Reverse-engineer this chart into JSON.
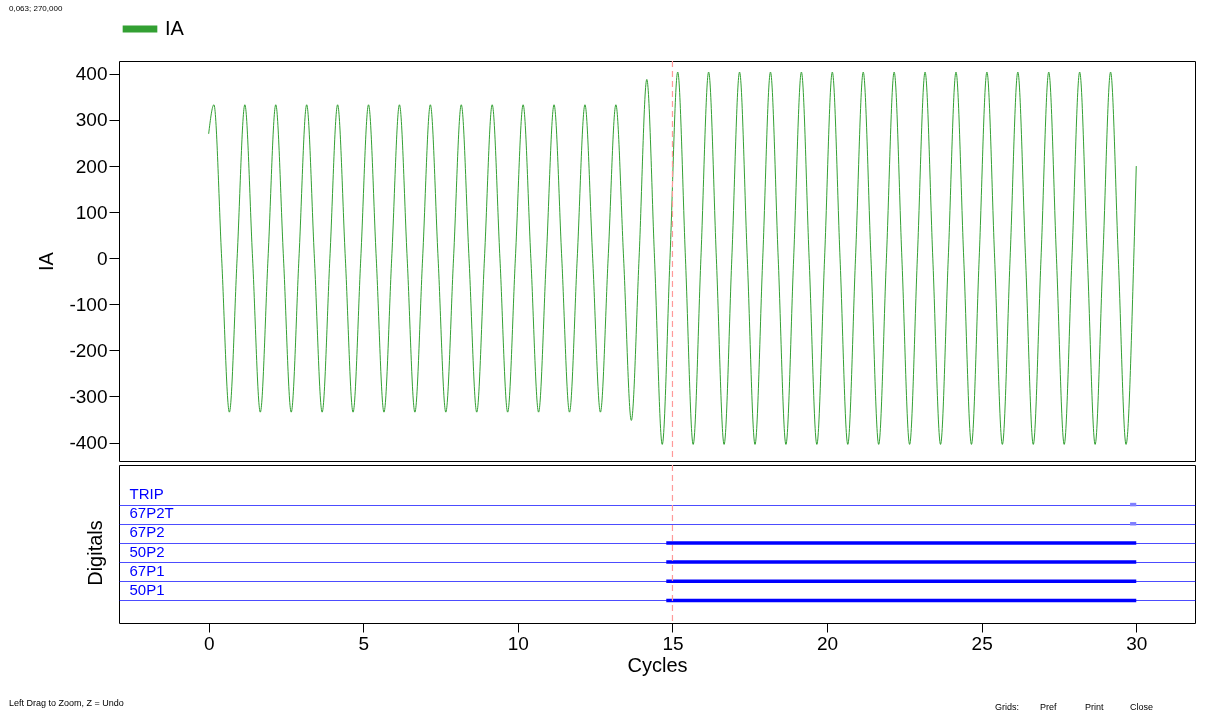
{
  "chart_data": [
    {
      "type": "line",
      "ylabel": "IA",
      "xlim": [
        -2.9,
        31.9
      ],
      "ylim": [
        -440,
        428
      ],
      "yticks": [
        -400,
        -300,
        -200,
        -100,
        0,
        100,
        200,
        300,
        400
      ],
      "tick_labels": "y",
      "grid": false,
      "legend": "top",
      "annotations": [
        "0,063; 270,000"
      ],
      "ref_lines": [
        {
          "axis": "x",
          "value": 15,
          "color": "#ff9999",
          "line_style": "dashed"
        }
      ],
      "series": [
        {
          "name": "IA",
          "color": "#33a033",
          "x": [
            0,
            0.17,
            0.42,
            0.67,
            0.92,
            1.17,
            1.42,
            1.67,
            1.92,
            2.17,
            2.42,
            2.67,
            2.92,
            3.17,
            3.42,
            3.67,
            3.92,
            4.17,
            4.42,
            4.67,
            4.92,
            5.17,
            5.42,
            5.67,
            5.92,
            6.17,
            6.42,
            6.67,
            6.92,
            7.17,
            7.42,
            7.67,
            7.92,
            8.17,
            8.42,
            8.67,
            8.92,
            9.17,
            9.42,
            9.67,
            9.92,
            10.17,
            10.42,
            10.67,
            10.92,
            11.17,
            11.42,
            11.67,
            11.92,
            12.17,
            12.42,
            12.67,
            12.92,
            13.17,
            13.42,
            13.67,
            13.92,
            14.17,
            14.42,
            14.67,
            14.92,
            15.17,
            15.42,
            15.67,
            15.92,
            16.17,
            16.42,
            16.67,
            16.92,
            17.17,
            17.42,
            17.67,
            17.92,
            18.17,
            18.42,
            18.67,
            18.92,
            19.17,
            19.42,
            19.67,
            19.92,
            20.17,
            20.42,
            20.67,
            20.92,
            21.17,
            21.42,
            21.67,
            21.92,
            22.17,
            22.42,
            22.67,
            22.92,
            23.17,
            23.42,
            23.67,
            23.92,
            24.17,
            24.42,
            24.67,
            24.92,
            25.17,
            25.42,
            25.67,
            25.92,
            26.17,
            26.42,
            26.67,
            26.92,
            27.17,
            27.42,
            27.67,
            27.92,
            28.17,
            28.42,
            28.67,
            28.92,
            29.17,
            29.42,
            29.67,
            29.92,
            30
          ],
          "values": [
            270,
            333,
            0,
            -334,
            0,
            333,
            0,
            -334,
            0,
            333,
            0,
            -334,
            0,
            333,
            0,
            -334,
            0,
            333,
            0,
            -334,
            0,
            333,
            0,
            -334,
            0,
            333,
            0,
            -334,
            0,
            333,
            0,
            -334,
            0,
            333,
            0,
            -334,
            0,
            333,
            0,
            -334,
            0,
            333,
            0,
            -334,
            0,
            333,
            0,
            -334,
            0,
            333,
            0,
            -334,
            0,
            333,
            0,
            -352,
            0,
            388,
            0,
            -404,
            0,
            404,
            0,
            -404,
            0,
            404,
            0,
            -404,
            0,
            404,
            0,
            -404,
            0,
            404,
            0,
            -404,
            0,
            404,
            0,
            -404,
            0,
            404,
            0,
            -404,
            0,
            404,
            0,
            -404,
            0,
            404,
            0,
            -404,
            0,
            404,
            0,
            -404,
            0,
            404,
            0,
            -404,
            0,
            404,
            0,
            -404,
            0,
            404,
            0,
            -404,
            0,
            404,
            0,
            -404,
            0,
            404,
            0,
            -404,
            0,
            404,
            0,
            -404,
            0,
            200
          ]
        }
      ]
    },
    {
      "type": "bar",
      "orientation": "horizontal",
      "ylabel": "Digitals",
      "xlabel": "Cycles",
      "grid": "y",
      "xlim": [
        -2.9,
        31.9
      ],
      "xticks": [
        0,
        5,
        10,
        15,
        20,
        25,
        30
      ],
      "categories": [
        "TRIP",
        "67P2T",
        "67P2",
        "50P2",
        "67P1",
        "50P1"
      ],
      "base": [
        29.8,
        29.8,
        14.8,
        14.8,
        14.8,
        14.8
      ],
      "values": [
        0.2,
        0.2,
        15.2,
        15.2,
        15.2,
        15.2
      ],
      "colors": [
        "#8080ff",
        "#8080ff",
        "#0000ff",
        "#0000ff",
        "#0000ff",
        "#0000ff"
      ],
      "ref_lines": [
        {
          "axis": "x",
          "value": 15,
          "color": "#ff9999",
          "line_style": "dashed"
        }
      ],
      "annotations": [
        "Left Drag to Zoom, Z = Undo",
        "Grids:",
        "Pref",
        "Print",
        "Close"
      ]
    }
  ]
}
